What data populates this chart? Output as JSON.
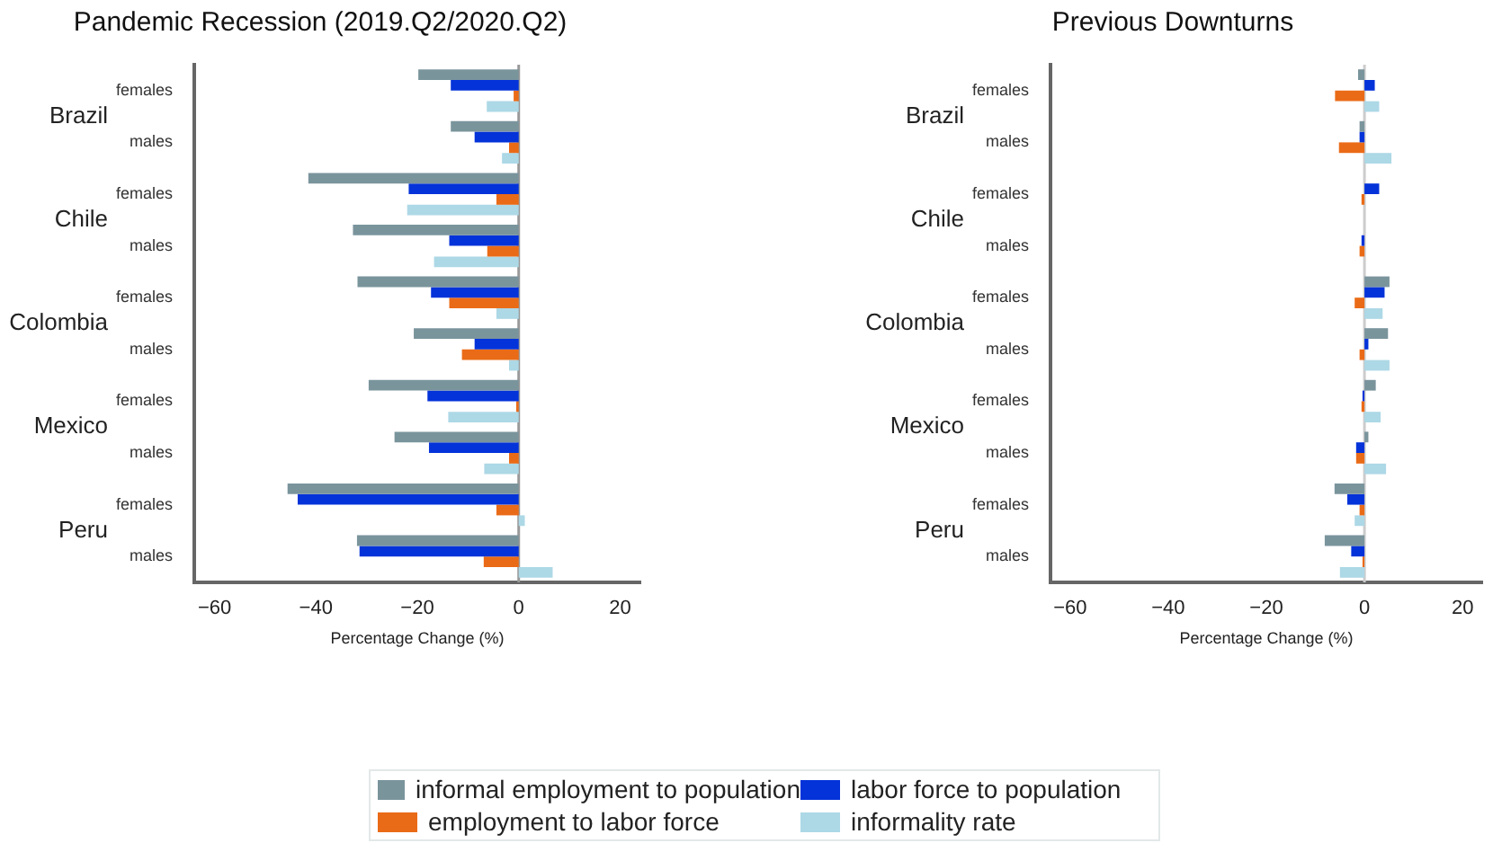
{
  "chart_data": [
    {
      "type": "bar",
      "orientation": "horizontal",
      "title": "Pandemic Recession (2019.Q2/2020.Q2)",
      "xlabel": "Percentage Change (%)",
      "categories": [
        "females",
        "males",
        "females",
        "males",
        "females",
        "males",
        "females",
        "males",
        "females",
        "males"
      ],
      "annotations": [
        "Brazil",
        "Chile",
        "Colombia",
        "Mexico",
        "Peru"
      ],
      "series": [
        {
          "name": "informal employment to population",
          "color": "#7a949c",
          "values": [
            -19.8,
            -13.4,
            -41.5,
            -32.7,
            -31.8,
            -20.7,
            -29.6,
            -24.5,
            -45.6,
            -31.9
          ]
        },
        {
          "name": "labor force to population",
          "color": "#0433d9",
          "values": [
            -13.4,
            -8.7,
            -21.7,
            -13.7,
            -17.3,
            -8.7,
            -18.0,
            -17.7,
            -43.6,
            -31.4
          ]
        },
        {
          "name": "employment to labor force",
          "color": "#ea6b17",
          "values": [
            -1.0,
            -1.9,
            -4.4,
            -6.2,
            -13.7,
            -11.2,
            -0.5,
            -1.9,
            -4.4,
            -6.9
          ]
        },
        {
          "name": "informality rate",
          "color": "#add8e6",
          "values": [
            -6.3,
            -3.3,
            -22.0,
            -16.7,
            -4.4,
            -1.9,
            -13.9,
            -6.8,
            1.2,
            6.7
          ]
        }
      ],
      "xlim": [
        -64,
        24
      ],
      "xticks": [
        {
          "value": -60,
          "label": "−60"
        },
        {
          "value": -40,
          "label": "−40"
        },
        {
          "value": -20,
          "label": "−20"
        },
        {
          "value": 0,
          "label": "0"
        },
        {
          "value": 20,
          "label": "20"
        }
      ],
      "ref_lines": [
        {
          "axis": "x",
          "value": 0,
          "color": "#999999"
        }
      ],
      "legend": "bottom"
    },
    {
      "type": "bar",
      "orientation": "horizontal",
      "title": "Previous Downturns",
      "xlabel": "Percentage Change (%)",
      "categories": [
        "females",
        "males",
        "females",
        "males",
        "females",
        "males",
        "females",
        "males",
        "females",
        "males"
      ],
      "annotations": [
        "Brazil",
        "Chile",
        "Colombia",
        "Mexico",
        "Peru"
      ],
      "series": [
        {
          "color": "#7a949c",
          "values": [
            -1.3,
            -1.0,
            null,
            null,
            5.1,
            4.8,
            2.3,
            0.8,
            -6.1,
            -8.1
          ]
        },
        {
          "color": "#0433d9",
          "values": [
            2.1,
            -1.0,
            3.0,
            -0.6,
            4.1,
            0.8,
            -0.4,
            -1.7,
            -3.5,
            -2.7
          ]
        },
        {
          "color": "#ea6b17",
          "values": [
            -6.0,
            -5.2,
            -0.6,
            -1.0,
            -2.0,
            -1.0,
            -0.6,
            -1.7,
            -1.0,
            -0.4
          ]
        },
        {
          "color": "#add8e6",
          "values": [
            3.0,
            5.5,
            null,
            null,
            3.7,
            5.1,
            3.3,
            4.4,
            -2.0,
            -5.0
          ]
        }
      ],
      "xlim": [
        -64,
        24
      ],
      "xticks": [
        {
          "value": -60,
          "label": "−60"
        },
        {
          "value": -40,
          "label": "−40"
        },
        {
          "value": -20,
          "label": "−20"
        },
        {
          "value": 0,
          "label": "0"
        },
        {
          "value": 20,
          "label": "20"
        }
      ],
      "ref_lines": [
        {
          "axis": "x",
          "value": 0,
          "color": "#cccccc"
        }
      ]
    }
  ]
}
